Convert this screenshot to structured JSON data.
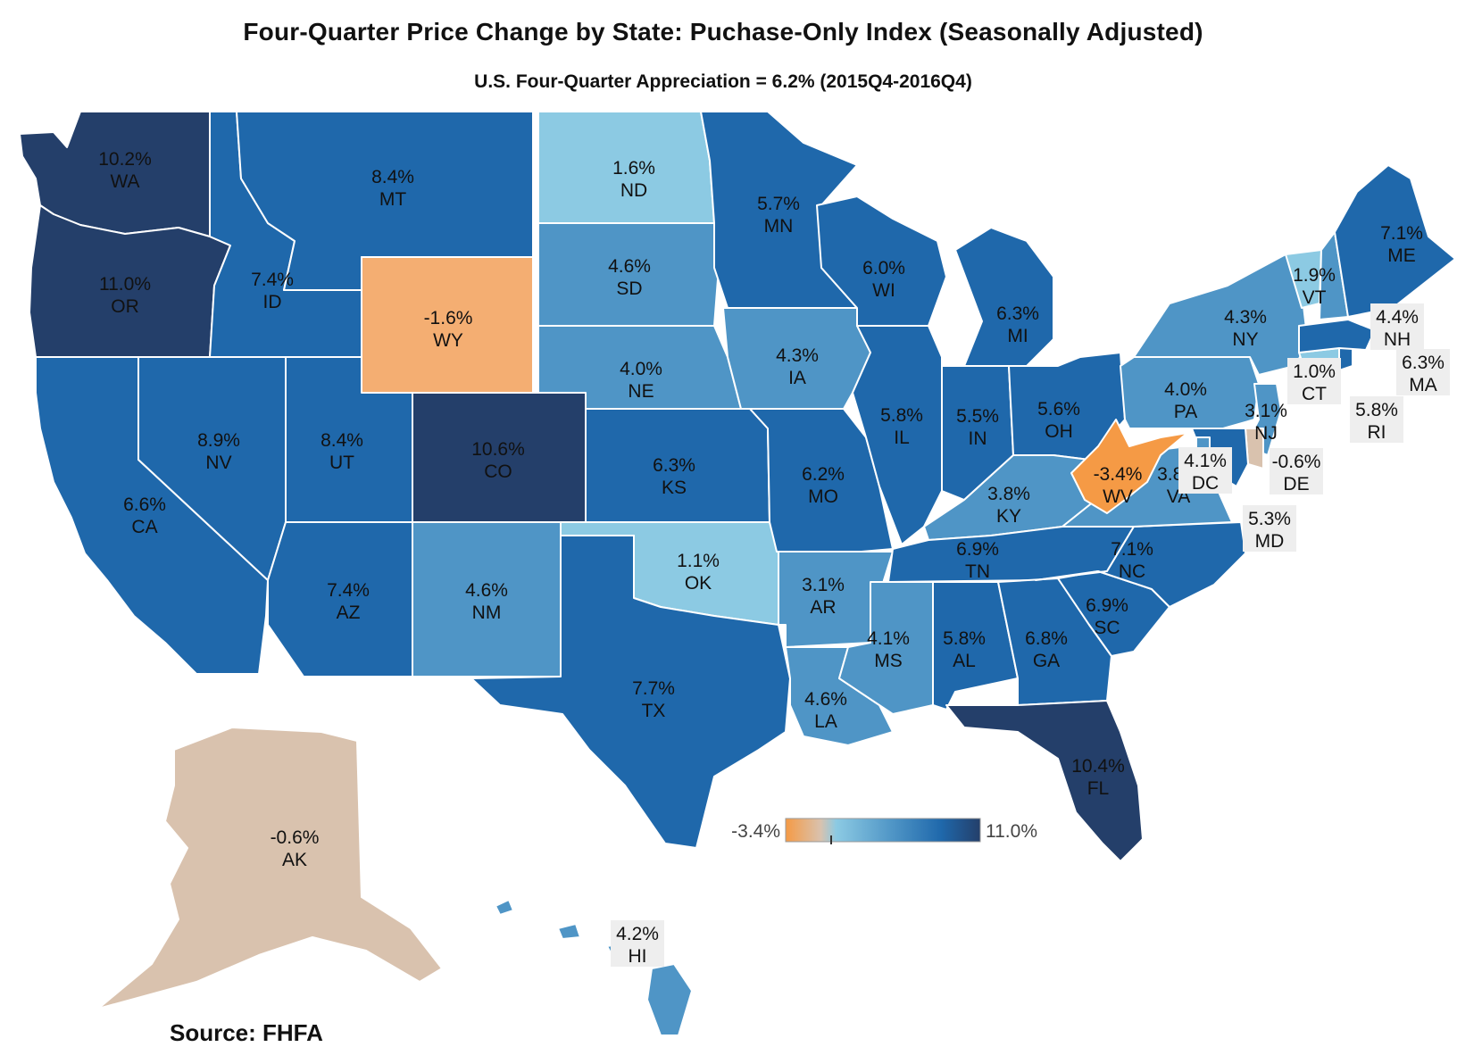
{
  "title": "Four-Quarter Price Change by State:  Puchase-Only Index (Seasonally Adjusted)",
  "subtitle": "U.S. Four-Quarter Appreciation = 6.2% (2015Q4-2016Q4)",
  "source": "Source: FHFA",
  "legend": {
    "min_label": "-3.4%",
    "max_label": "11.0%",
    "min": -3.4,
    "max": 11.0
  },
  "colors": {
    "negative_low": "#f59a45",
    "negative_mid": "#f4ae72",
    "near_zero": "#d9c2ae",
    "low": "#8ccae3",
    "mid": "#4f95c6",
    "high": "#1f68ab",
    "very_high": "#243f6a"
  },
  "states": [
    {
      "abbr": "WA",
      "value": "10.2%",
      "v": 10.2
    },
    {
      "abbr": "OR",
      "value": "11.0%",
      "v": 11.0
    },
    {
      "abbr": "CA",
      "value": "6.6%",
      "v": 6.6
    },
    {
      "abbr": "NV",
      "value": "8.9%",
      "v": 8.9
    },
    {
      "abbr": "ID",
      "value": "7.4%",
      "v": 7.4
    },
    {
      "abbr": "MT",
      "value": "8.4%",
      "v": 8.4
    },
    {
      "abbr": "WY",
      "value": "-1.6%",
      "v": -1.6
    },
    {
      "abbr": "UT",
      "value": "8.4%",
      "v": 8.4
    },
    {
      "abbr": "CO",
      "value": "10.6%",
      "v": 10.6
    },
    {
      "abbr": "AZ",
      "value": "7.4%",
      "v": 7.4
    },
    {
      "abbr": "NM",
      "value": "4.6%",
      "v": 4.6
    },
    {
      "abbr": "ND",
      "value": "1.6%",
      "v": 1.6
    },
    {
      "abbr": "SD",
      "value": "4.6%",
      "v": 4.6
    },
    {
      "abbr": "NE",
      "value": "4.0%",
      "v": 4.0
    },
    {
      "abbr": "KS",
      "value": "6.3%",
      "v": 6.3
    },
    {
      "abbr": "OK",
      "value": "1.1%",
      "v": 1.1
    },
    {
      "abbr": "TX",
      "value": "7.7%",
      "v": 7.7
    },
    {
      "abbr": "MN",
      "value": "5.7%",
      "v": 5.7
    },
    {
      "abbr": "IA",
      "value": "4.3%",
      "v": 4.3
    },
    {
      "abbr": "MO",
      "value": "6.2%",
      "v": 6.2
    },
    {
      "abbr": "AR",
      "value": "3.1%",
      "v": 3.1
    },
    {
      "abbr": "LA",
      "value": "4.6%",
      "v": 4.6
    },
    {
      "abbr": "WI",
      "value": "6.0%",
      "v": 6.0
    },
    {
      "abbr": "IL",
      "value": "5.8%",
      "v": 5.8
    },
    {
      "abbr": "MI",
      "value": "6.3%",
      "v": 6.3
    },
    {
      "abbr": "IN",
      "value": "5.5%",
      "v": 5.5
    },
    {
      "abbr": "OH",
      "value": "5.6%",
      "v": 5.6
    },
    {
      "abbr": "KY",
      "value": "3.8%",
      "v": 3.8
    },
    {
      "abbr": "TN",
      "value": "6.9%",
      "v": 6.9
    },
    {
      "abbr": "MS",
      "value": "4.1%",
      "v": 4.1
    },
    {
      "abbr": "AL",
      "value": "5.8%",
      "v": 5.8
    },
    {
      "abbr": "GA",
      "value": "6.8%",
      "v": 6.8
    },
    {
      "abbr": "FL",
      "value": "10.4%",
      "v": 10.4
    },
    {
      "abbr": "SC",
      "value": "6.9%",
      "v": 6.9
    },
    {
      "abbr": "NC",
      "value": "7.1%",
      "v": 7.1
    },
    {
      "abbr": "VA",
      "value": "3.8%",
      "v": 3.8
    },
    {
      "abbr": "WV",
      "value": "-3.4%",
      "v": -3.4
    },
    {
      "abbr": "PA",
      "value": "4.0%",
      "v": 4.0
    },
    {
      "abbr": "NY",
      "value": "4.3%",
      "v": 4.3
    },
    {
      "abbr": "NJ",
      "value": "3.1%",
      "v": 3.1
    },
    {
      "abbr": "DE",
      "value": "-0.6%",
      "v": -0.6
    },
    {
      "abbr": "MD",
      "value": "5.3%",
      "v": 5.3
    },
    {
      "abbr": "DC",
      "value": "4.1%",
      "v": 4.1
    },
    {
      "abbr": "CT",
      "value": "1.0%",
      "v": 1.0
    },
    {
      "abbr": "RI",
      "value": "5.8%",
      "v": 5.8
    },
    {
      "abbr": "MA",
      "value": "6.3%",
      "v": 6.3
    },
    {
      "abbr": "VT",
      "value": "1.9%",
      "v": 1.9
    },
    {
      "abbr": "NH",
      "value": "4.4%",
      "v": 4.4
    },
    {
      "abbr": "ME",
      "value": "7.1%",
      "v": 7.1
    },
    {
      "abbr": "AK",
      "value": "-0.6%",
      "v": -0.6
    },
    {
      "abbr": "HI",
      "value": "4.2%",
      "v": 4.2
    }
  ]
}
